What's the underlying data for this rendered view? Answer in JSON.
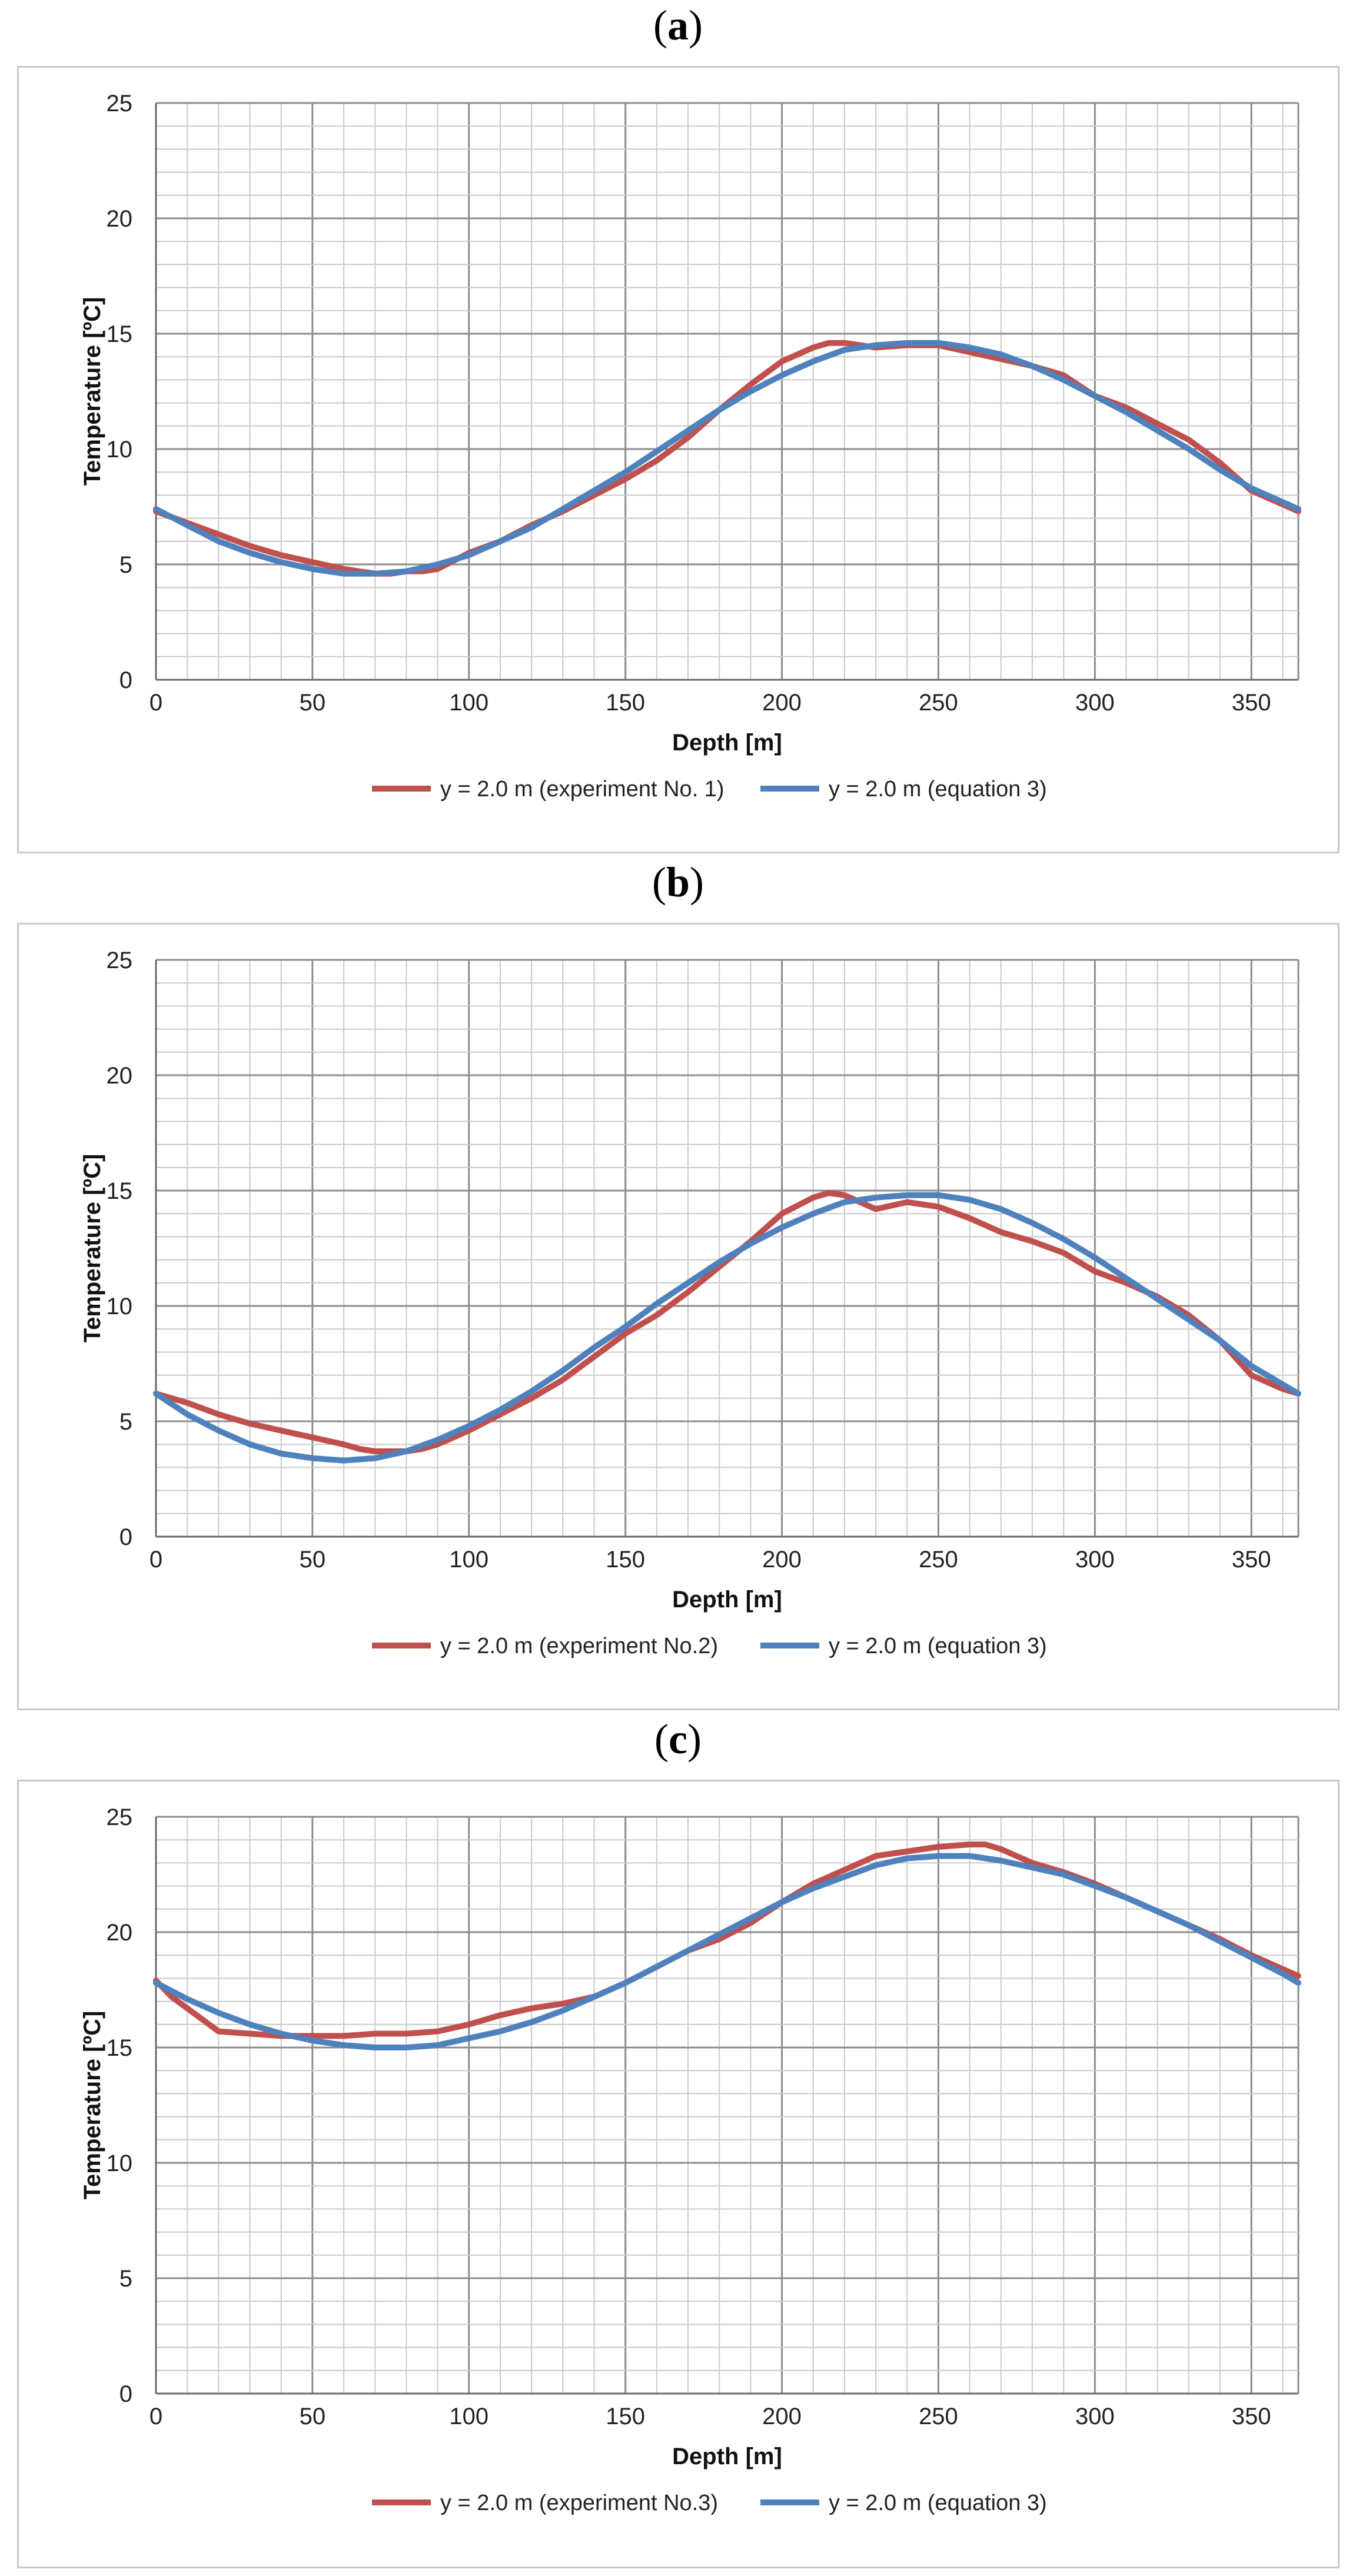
{
  "chart_data": [
    {
      "panel": "a",
      "type": "line",
      "xlabel": "Depth [m]",
      "ylabel": "Temperature [ºC]",
      "xlim": [
        0,
        365
      ],
      "ylim": [
        0,
        25
      ],
      "x_ticks": [
        0,
        50,
        100,
        150,
        200,
        250,
        300,
        350
      ],
      "y_ticks": [
        0,
        5,
        10,
        15,
        20,
        25
      ],
      "grid": "major and minor",
      "legend_position": "bottom",
      "series": [
        {
          "name": "y = 2.0 m (experiment No. 1)",
          "color": "#c0504d",
          "x": [
            0,
            10,
            20,
            30,
            40,
            50,
            60,
            65,
            70,
            75,
            80,
            85,
            90,
            100,
            110,
            120,
            130,
            140,
            150,
            160,
            170,
            180,
            190,
            200,
            210,
            215,
            220,
            230,
            240,
            250,
            260,
            270,
            280,
            290,
            300,
            310,
            320,
            330,
            340,
            350,
            360,
            365
          ],
          "values": [
            7.3,
            6.8,
            6.3,
            5.8,
            5.4,
            5.1,
            4.8,
            4.7,
            4.6,
            4.6,
            4.7,
            4.7,
            4.8,
            5.5,
            6.0,
            6.7,
            7.3,
            8.0,
            8.7,
            9.5,
            10.5,
            11.7,
            12.8,
            13.8,
            14.4,
            14.6,
            14.6,
            14.4,
            14.5,
            14.5,
            14.2,
            13.9,
            13.6,
            13.2,
            12.3,
            11.8,
            11.1,
            10.4,
            9.4,
            8.2,
            7.6,
            7.3
          ]
        },
        {
          "name": "y = 2.0 m (equation 3)",
          "color": "#4f81bd",
          "x": [
            0,
            10,
            20,
            30,
            40,
            50,
            60,
            70,
            80,
            90,
            100,
            110,
            120,
            130,
            140,
            150,
            160,
            170,
            180,
            190,
            200,
            210,
            220,
            230,
            240,
            250,
            260,
            270,
            280,
            290,
            300,
            310,
            320,
            330,
            340,
            350,
            360,
            365
          ],
          "values": [
            7.4,
            6.7,
            6.0,
            5.5,
            5.1,
            4.8,
            4.6,
            4.6,
            4.7,
            5.0,
            5.4,
            6.0,
            6.6,
            7.4,
            8.2,
            9.0,
            9.9,
            10.8,
            11.7,
            12.5,
            13.2,
            13.8,
            14.3,
            14.5,
            14.6,
            14.6,
            14.4,
            14.1,
            13.6,
            13.0,
            12.3,
            11.6,
            10.8,
            10.0,
            9.1,
            8.3,
            7.7,
            7.4
          ]
        }
      ]
    },
    {
      "panel": "b",
      "type": "line",
      "xlabel": "Depth [m]",
      "ylabel": "Temperature [ºC]",
      "xlim": [
        0,
        365
      ],
      "ylim": [
        0,
        25
      ],
      "x_ticks": [
        0,
        50,
        100,
        150,
        200,
        250,
        300,
        350
      ],
      "y_ticks": [
        0,
        5,
        10,
        15,
        20,
        25
      ],
      "grid": "major and minor",
      "legend_position": "bottom",
      "series": [
        {
          "name": "y = 2.0 m (experiment No.2)",
          "color": "#c0504d",
          "x": [
            0,
            10,
            20,
            30,
            40,
            50,
            60,
            65,
            70,
            75,
            80,
            85,
            90,
            100,
            110,
            120,
            130,
            140,
            150,
            160,
            170,
            180,
            190,
            200,
            210,
            215,
            220,
            230,
            240,
            250,
            260,
            270,
            280,
            290,
            300,
            310,
            320,
            330,
            340,
            350,
            360,
            365
          ],
          "values": [
            6.2,
            5.8,
            5.3,
            4.9,
            4.6,
            4.3,
            4.0,
            3.8,
            3.7,
            3.7,
            3.7,
            3.8,
            4.0,
            4.6,
            5.3,
            6.0,
            6.8,
            7.8,
            8.8,
            9.6,
            10.6,
            11.7,
            12.8,
            14.0,
            14.7,
            14.9,
            14.8,
            14.2,
            14.5,
            14.3,
            13.8,
            13.2,
            12.8,
            12.3,
            11.5,
            11.0,
            10.4,
            9.6,
            8.5,
            7.0,
            6.4,
            6.2
          ]
        },
        {
          "name": "y = 2.0 m (equation 3)",
          "color": "#4f81bd",
          "x": [
            0,
            10,
            20,
            30,
            40,
            50,
            60,
            70,
            80,
            90,
            100,
            110,
            120,
            130,
            140,
            150,
            160,
            170,
            180,
            190,
            200,
            210,
            220,
            230,
            240,
            250,
            260,
            270,
            280,
            290,
            300,
            310,
            320,
            330,
            340,
            350,
            360,
            365
          ],
          "values": [
            6.2,
            5.3,
            4.6,
            4.0,
            3.6,
            3.4,
            3.3,
            3.4,
            3.7,
            4.2,
            4.8,
            5.5,
            6.3,
            7.2,
            8.2,
            9.1,
            10.1,
            11.0,
            11.9,
            12.7,
            13.4,
            14.0,
            14.5,
            14.7,
            14.8,
            14.8,
            14.6,
            14.2,
            13.6,
            12.9,
            12.1,
            11.2,
            10.3,
            9.4,
            8.5,
            7.4,
            6.6,
            6.2
          ]
        }
      ]
    },
    {
      "panel": "c",
      "type": "line",
      "xlabel": "Depth [m]",
      "ylabel": "Temperature [ºC]",
      "xlim": [
        0,
        365
      ],
      "ylim": [
        0,
        25
      ],
      "x_ticks": [
        0,
        50,
        100,
        150,
        200,
        250,
        300,
        350
      ],
      "y_ticks": [
        0,
        5,
        10,
        15,
        20,
        25
      ],
      "grid": "major and minor",
      "legend_position": "bottom",
      "series": [
        {
          "name": "y = 2.0 m (experiment No.3)",
          "color": "#c0504d",
          "x": [
            0,
            5,
            10,
            15,
            20,
            30,
            40,
            50,
            60,
            70,
            80,
            90,
            100,
            110,
            120,
            130,
            140,
            150,
            160,
            170,
            180,
            190,
            200,
            210,
            220,
            230,
            240,
            250,
            260,
            265,
            270,
            280,
            290,
            300,
            310,
            320,
            330,
            340,
            350,
            360,
            365
          ],
          "values": [
            17.9,
            17.2,
            16.7,
            16.2,
            15.7,
            15.6,
            15.5,
            15.5,
            15.5,
            15.6,
            15.6,
            15.7,
            16.0,
            16.4,
            16.7,
            16.9,
            17.2,
            17.8,
            18.5,
            19.2,
            19.7,
            20.4,
            21.3,
            22.1,
            22.7,
            23.3,
            23.5,
            23.7,
            23.8,
            23.8,
            23.6,
            23.0,
            22.6,
            22.1,
            21.5,
            20.9,
            20.3,
            19.7,
            19.0,
            18.4,
            18.1
          ]
        },
        {
          "name": "y = 2.0 m (equation 3)",
          "color": "#4f81bd",
          "x": [
            0,
            10,
            20,
            30,
            40,
            50,
            60,
            70,
            80,
            90,
            100,
            110,
            120,
            130,
            140,
            150,
            160,
            170,
            180,
            190,
            200,
            210,
            220,
            230,
            240,
            250,
            260,
            270,
            280,
            290,
            300,
            310,
            320,
            330,
            340,
            350,
            360,
            365
          ],
          "values": [
            17.8,
            17.1,
            16.5,
            16.0,
            15.6,
            15.3,
            15.1,
            15.0,
            15.0,
            15.1,
            15.4,
            15.7,
            16.1,
            16.6,
            17.2,
            17.8,
            18.5,
            19.2,
            19.9,
            20.6,
            21.3,
            21.9,
            22.4,
            22.9,
            23.2,
            23.3,
            23.3,
            23.1,
            22.8,
            22.5,
            22.0,
            21.5,
            20.9,
            20.3,
            19.6,
            18.9,
            18.2,
            17.8
          ]
        }
      ]
    }
  ],
  "panel_labels": {
    "a": "a",
    "b": "b",
    "c": "c"
  }
}
